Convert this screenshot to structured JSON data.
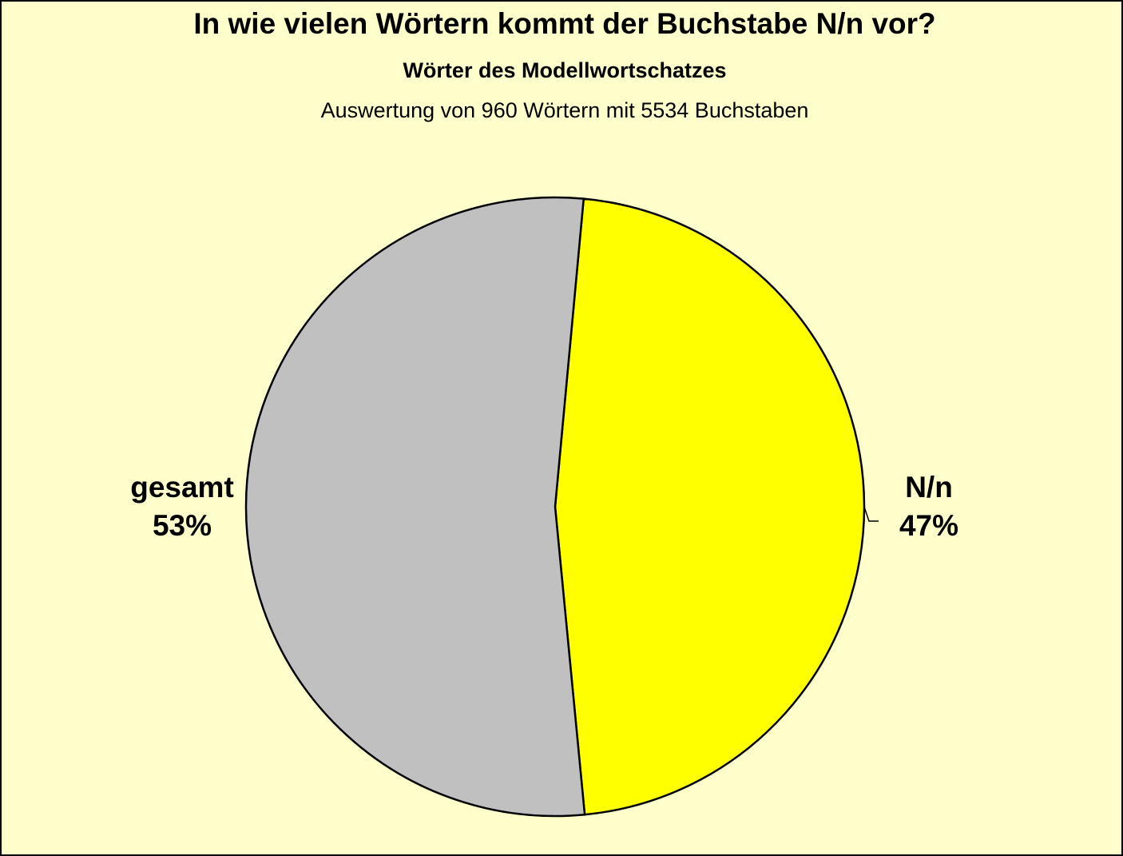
{
  "chart_data": {
    "type": "pie",
    "title": "In wie vielen Wörtern kommt der Buchstabe N/n vor?",
    "subtitle": "Wörter des Modellwortschatzes",
    "note": "Auswertung von 960 Wörtern mit 5534 Buchstaben",
    "categories": [
      "N/n",
      "gesamt"
    ],
    "values": [
      47,
      53
    ],
    "value_labels": [
      "47%",
      "53%"
    ],
    "colors": [
      "#ffff00",
      "#c0c0c0"
    ]
  }
}
